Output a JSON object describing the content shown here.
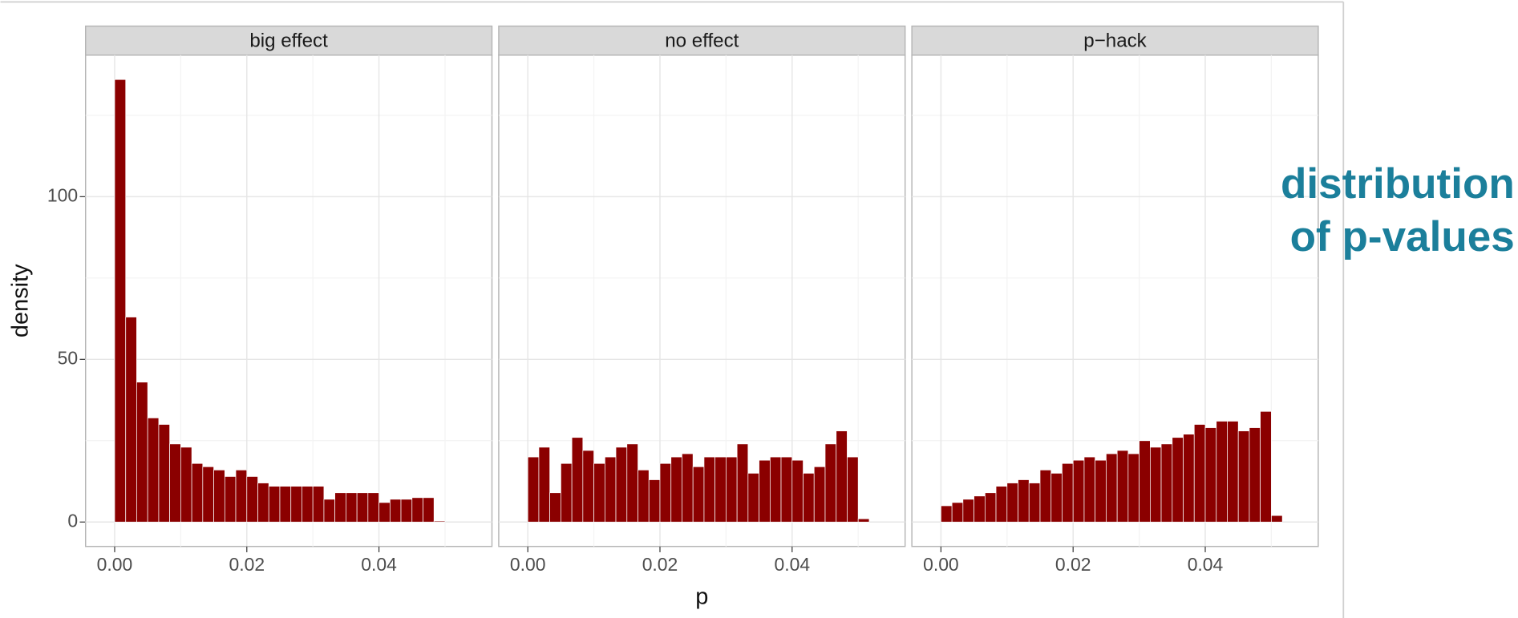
{
  "chart_data": {
    "type": "histogram",
    "xlabel": "p",
    "ylabel": "density",
    "color": "#8b0000",
    "grid": true,
    "xlim": [
      -0.0044,
      0.0571
    ],
    "ylim": [
      -7.5,
      143.5
    ],
    "xticks": [
      {
        "value": 0,
        "label": "0.00"
      },
      {
        "value": 0.02,
        "label": "0.02"
      },
      {
        "value": 0.04,
        "label": "0.04"
      }
    ],
    "yticks": [
      0,
      50,
      100
    ],
    "bins": [
      0,
      0.00167,
      0.00333,
      0.005,
      0.00667,
      0.00833,
      0.01,
      0.01167,
      0.01333,
      0.015,
      0.01667,
      0.01833,
      0.02,
      0.02167,
      0.02333,
      0.025,
      0.02667,
      0.02833,
      0.03,
      0.03167,
      0.03333,
      0.035,
      0.03667,
      0.03833,
      0.04,
      0.04167,
      0.04333,
      0.045,
      0.04667,
      0.04833,
      0.05,
      0.05167
    ],
    "panels": [
      {
        "title": "big effect",
        "values": [
          136,
          63,
          43,
          32,
          30,
          24,
          23,
          18,
          17,
          16,
          14,
          16,
          14,
          12,
          11,
          11,
          11,
          11,
          11,
          7,
          9,
          9,
          9,
          9,
          6,
          7,
          7,
          7.5,
          7.5,
          0.3,
          0
        ]
      },
      {
        "title": "no effect",
        "values": [
          20,
          23,
          9,
          18,
          26,
          22,
          18,
          20,
          23,
          24,
          16,
          13,
          18,
          20,
          21,
          17,
          20,
          20,
          20,
          24,
          15,
          19,
          20,
          20,
          19,
          15,
          17,
          24,
          28,
          20,
          1
        ]
      },
      {
        "title": "p−hack",
        "values": [
          5,
          6,
          7,
          8,
          9,
          11,
          12,
          13,
          12,
          16,
          15,
          18,
          19,
          20,
          19,
          21,
          22,
          21,
          25,
          23,
          24,
          26,
          27,
          30,
          29,
          31,
          31,
          28,
          29,
          34,
          2
        ]
      }
    ]
  },
  "annotation": [
    "distribution",
    "of p-values"
  ]
}
